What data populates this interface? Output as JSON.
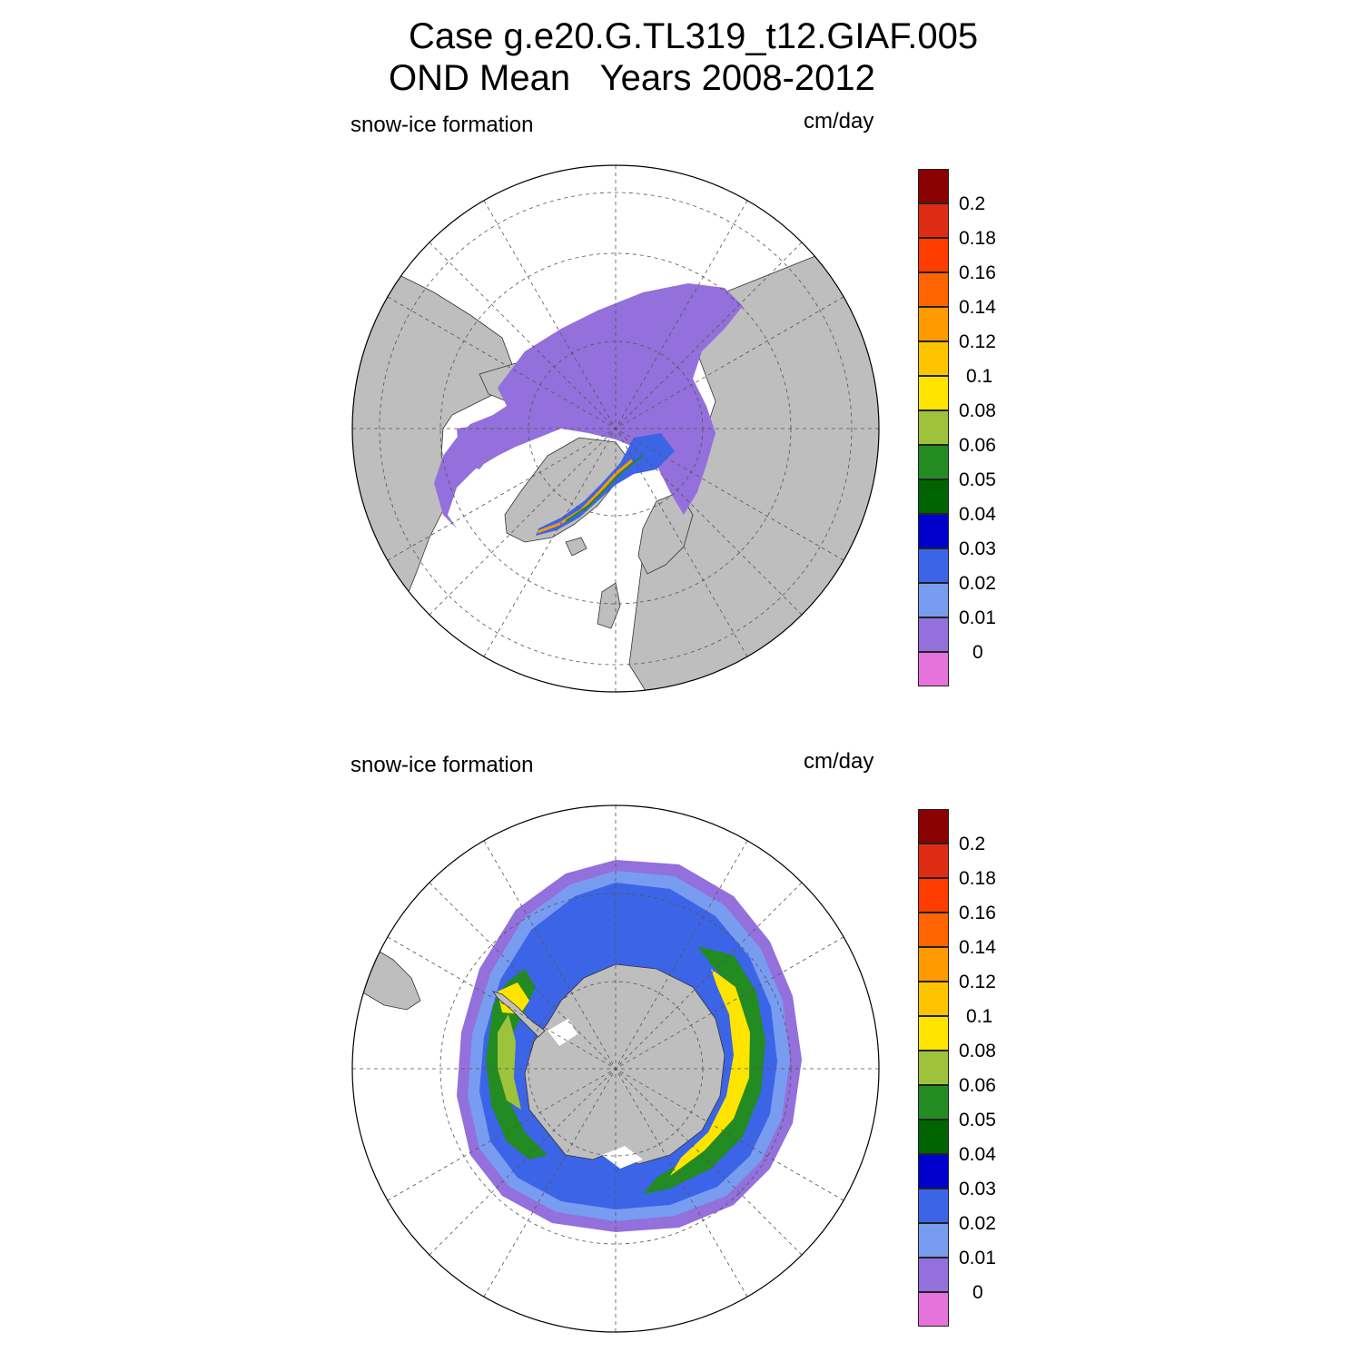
{
  "title": {
    "line1": "Case g.e20.G.TL319_t12.GIAF.005",
    "line2": "OND Mean   Years 2008-2012"
  },
  "panels": [
    {
      "variable": "snow-ice formation",
      "units": "cm/day",
      "hemisphere": "north"
    },
    {
      "variable": "snow-ice formation",
      "units": "cm/day",
      "hemisphere": "south"
    }
  ],
  "colorbar": {
    "labels": [
      "0.2",
      "0.18",
      "0.16",
      "0.14",
      "0.12",
      "0.1",
      "0.08",
      "0.06",
      "0.05",
      "0.04",
      "0.03",
      "0.02",
      "0.01",
      "0"
    ],
    "colors": [
      "#8b0000",
      "#de2c14",
      "#ff3c00",
      "#ff6400",
      "#ff9a00",
      "#ffc400",
      "#ffe400",
      "#9ec23b",
      "#228b22",
      "#006400",
      "#0000cd",
      "#3c64e6",
      "#789cf0",
      "#9370db",
      "#e672dc"
    ]
  },
  "map_colors": {
    "land": "#bebebe",
    "ocean": "#ffffff",
    "grid": "#555555"
  }
}
